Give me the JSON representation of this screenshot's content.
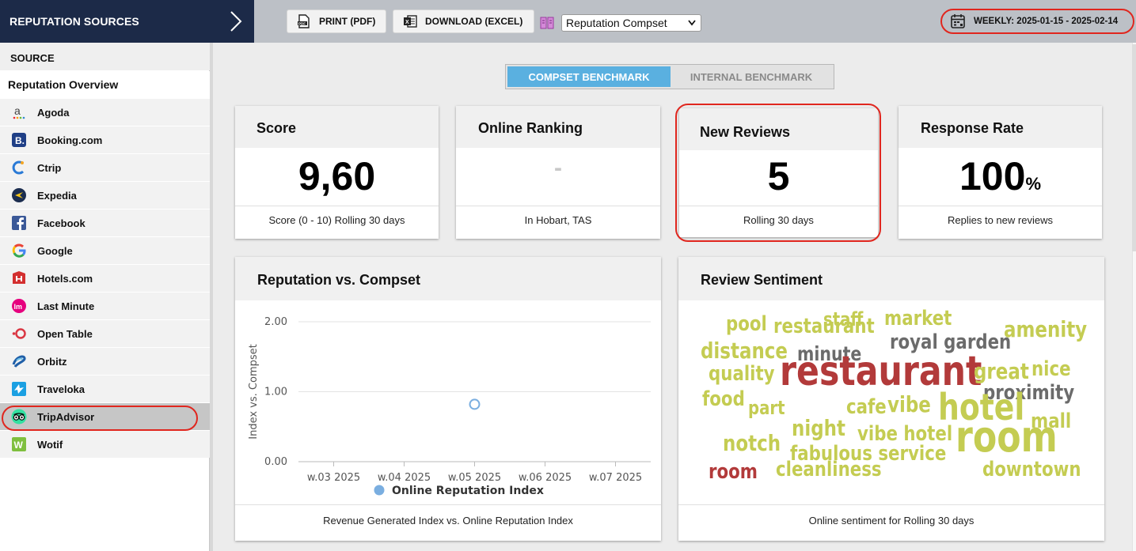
{
  "header": {
    "title": "REPUTATION SOURCES",
    "print_label": "PRINT (PDF)",
    "download_label": "DOWNLOAD (EXCEL)",
    "compset_select": "Reputation Compset",
    "date_range": "WEEKLY: 2025-01-15 - 2025-02-14"
  },
  "sidebar": {
    "heading": "SOURCE",
    "overview": "Reputation Overview",
    "items": [
      {
        "label": "Agoda",
        "icon": "agoda-icon"
      },
      {
        "label": "Booking.com",
        "icon": "booking-icon"
      },
      {
        "label": "Ctrip",
        "icon": "ctrip-icon"
      },
      {
        "label": "Expedia",
        "icon": "expedia-icon"
      },
      {
        "label": "Facebook",
        "icon": "facebook-icon"
      },
      {
        "label": "Google",
        "icon": "google-icon"
      },
      {
        "label": "Hotels.com",
        "icon": "hotels-icon"
      },
      {
        "label": "Last Minute",
        "icon": "lastminute-icon"
      },
      {
        "label": "Open Table",
        "icon": "opentable-icon"
      },
      {
        "label": "Orbitz",
        "icon": "orbitz-icon"
      },
      {
        "label": "Traveloka",
        "icon": "traveloka-icon"
      },
      {
        "label": "TripAdvisor",
        "icon": "tripadvisor-icon",
        "selected": true
      },
      {
        "label": "Wotif",
        "icon": "wotif-icon"
      }
    ]
  },
  "benchmark": {
    "active": "COMPSET BENCHMARK",
    "inactive": "INTERNAL BENCHMARK"
  },
  "kpis": {
    "score": {
      "title": "Score",
      "value": "9,60",
      "footer": "Score (0 - 10) Rolling 30 days"
    },
    "ranking": {
      "title": "Online Ranking",
      "value": "-",
      "footer": "In Hobart, TAS"
    },
    "reviews": {
      "title": "New Reviews",
      "value": "5",
      "footer": "Rolling 30 days"
    },
    "response": {
      "title": "Response Rate",
      "value": "100",
      "unit": "%",
      "footer": "Replies to new reviews"
    }
  },
  "reputation_chart": {
    "title": "Reputation vs. Compset",
    "footer": "Revenue Generated Index vs. Online Reputation Index"
  },
  "chart_data": {
    "type": "scatter",
    "categories": [
      "w.03 2025",
      "w.04 2025",
      "w.05 2025",
      "w.06 2025",
      "w.07 2025"
    ],
    "series": [
      {
        "name": "Online Reputation Index",
        "values": [
          null,
          null,
          0.82,
          null,
          null
        ],
        "color": "#7aaee0"
      }
    ],
    "ylabel": "Index vs. Compset",
    "ylim": [
      0,
      2
    ],
    "yticks": [
      "0.00",
      "1.00",
      "2.00"
    ],
    "grid": true,
    "legend": "bottom"
  },
  "sentiment": {
    "title": "Review Sentiment",
    "footer": "Online sentiment for Rolling 30 days",
    "words": [
      {
        "text": "pool",
        "color": "#c4cc52"
      },
      {
        "text": "restaurant",
        "color": "#c4cc52"
      },
      {
        "text": "staff",
        "color": "#c4cc52"
      },
      {
        "text": "market",
        "color": "#c4cc52"
      },
      {
        "text": "amenity",
        "color": "#c4cc52"
      },
      {
        "text": "distance",
        "color": "#c4cc52"
      },
      {
        "text": "minute",
        "color": "#6b6b6b"
      },
      {
        "text": "royal garden",
        "color": "#6b6b6b"
      },
      {
        "text": "quality",
        "color": "#c4cc52"
      },
      {
        "text": "restaurant",
        "color": "#b23a3a"
      },
      {
        "text": "great",
        "color": "#c4cc52"
      },
      {
        "text": "nice",
        "color": "#c4cc52"
      },
      {
        "text": "proximity",
        "color": "#6b6b6b"
      },
      {
        "text": "food",
        "color": "#c4cc52"
      },
      {
        "text": "part",
        "color": "#c4cc52"
      },
      {
        "text": "cafe",
        "color": "#c4cc52"
      },
      {
        "text": "vibe",
        "color": "#c4cc52"
      },
      {
        "text": "hotel",
        "color": "#c4cc52"
      },
      {
        "text": "mall",
        "color": "#c4cc52"
      },
      {
        "text": "night",
        "color": "#c4cc52"
      },
      {
        "text": "vibe hotel",
        "color": "#c4cc52"
      },
      {
        "text": "notch",
        "color": "#c4cc52"
      },
      {
        "text": "fabulous service",
        "color": "#c4cc52"
      },
      {
        "text": "room",
        "color": "#c4cc52"
      },
      {
        "text": "room",
        "color": "#b23a3a"
      },
      {
        "text": "cleanliness",
        "color": "#c4cc52"
      },
      {
        "text": "downtown",
        "color": "#c4cc52"
      }
    ]
  }
}
